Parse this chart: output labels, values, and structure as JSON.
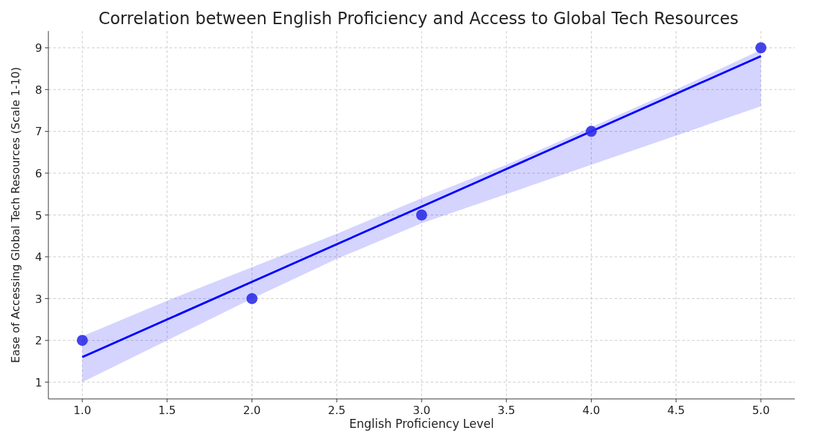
{
  "chart_data": {
    "type": "scatter",
    "title": "Correlation between English Proficiency and Access to Global Tech Resources",
    "xlabel": "English Proficiency Level",
    "ylabel": "Ease of Accessing Global Tech Resources (Scale 1-10)",
    "xlim": [
      0.8,
      5.2
    ],
    "ylim": [
      0.6,
      9.4
    ],
    "xticks": [
      {
        "value": 1,
        "label": "1.0"
      },
      {
        "value": 1.5,
        "label": "1.5"
      },
      {
        "value": 2,
        "label": "2.0"
      },
      {
        "value": 2.5,
        "label": "2.5"
      },
      {
        "value": 3,
        "label": "3.0"
      },
      {
        "value": 3.5,
        "label": "3.5"
      },
      {
        "value": 4,
        "label": "4.0"
      },
      {
        "value": 4.5,
        "label": "4.5"
      },
      {
        "value": 5,
        "label": "5.0"
      }
    ],
    "yticks": [
      1,
      2,
      3,
      4,
      5,
      6,
      7,
      8,
      9
    ],
    "grid": true,
    "marker": "circle",
    "series": [
      {
        "color": "#2f2fe8",
        "x": [
          1,
          2,
          3,
          4,
          5
        ],
        "values": [
          2,
          3,
          5,
          7,
          9
        ]
      },
      {
        "type": "line",
        "color": "#0000ff",
        "line_style": "solid",
        "marker": "none",
        "x": [
          1,
          1.5,
          2,
          2.5,
          3,
          3.5,
          4,
          4.5,
          5
        ],
        "values": [
          1.6,
          2.5,
          3.4,
          4.3,
          5.2,
          6.1,
          7.0,
          7.9,
          8.8
        ],
        "lower": [
          1.0,
          2.0,
          3.0,
          3.95,
          4.8,
          5.5,
          6.2,
          6.9,
          7.6
        ],
        "upper": [
          2.1,
          2.95,
          3.75,
          4.55,
          5.4,
          6.2,
          7.1,
          8.0,
          8.95
        ]
      }
    ]
  }
}
